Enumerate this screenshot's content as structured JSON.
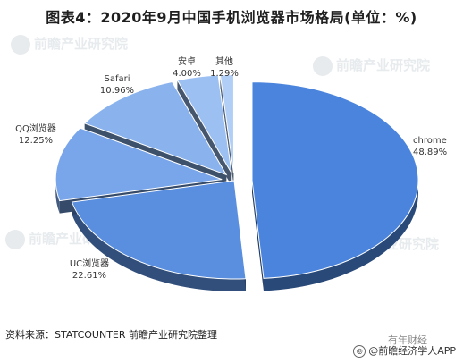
{
  "chart_data": {
    "type": "pie",
    "title": "图表4：2020年9月中国手机浏览器市场格局(单位：%)",
    "slices": [
      {
        "label": "chrome",
        "value": 48.89,
        "value_text": "48.89%",
        "color": "#4a84dc"
      },
      {
        "label": "UC浏览器",
        "value": 22.61,
        "value_text": "22.61%",
        "color": "#5a8fe0"
      },
      {
        "label": "QQ浏览器",
        "value": 12.25,
        "value_text": "12.25%",
        "color": "#79a6ea"
      },
      {
        "label": "Safari",
        "value": 10.96,
        "value_text": "10.96%",
        "color": "#8ab3ee"
      },
      {
        "label": "安卓",
        "value": 4.0,
        "value_text": "4.00%",
        "color": "#9cc0f2"
      },
      {
        "label": "其他",
        "value": 1.29,
        "value_text": "1.29%",
        "color": "#b0cef6"
      }
    ],
    "legend": "none",
    "style": "3d-exploded"
  },
  "source": "资料来源：STATCOUNTER 前瞻产业研究院整理",
  "watermark": "前瞻产业研究院",
  "wechat_text": "有年财经",
  "brand": "@前瞻经济学人APP"
}
